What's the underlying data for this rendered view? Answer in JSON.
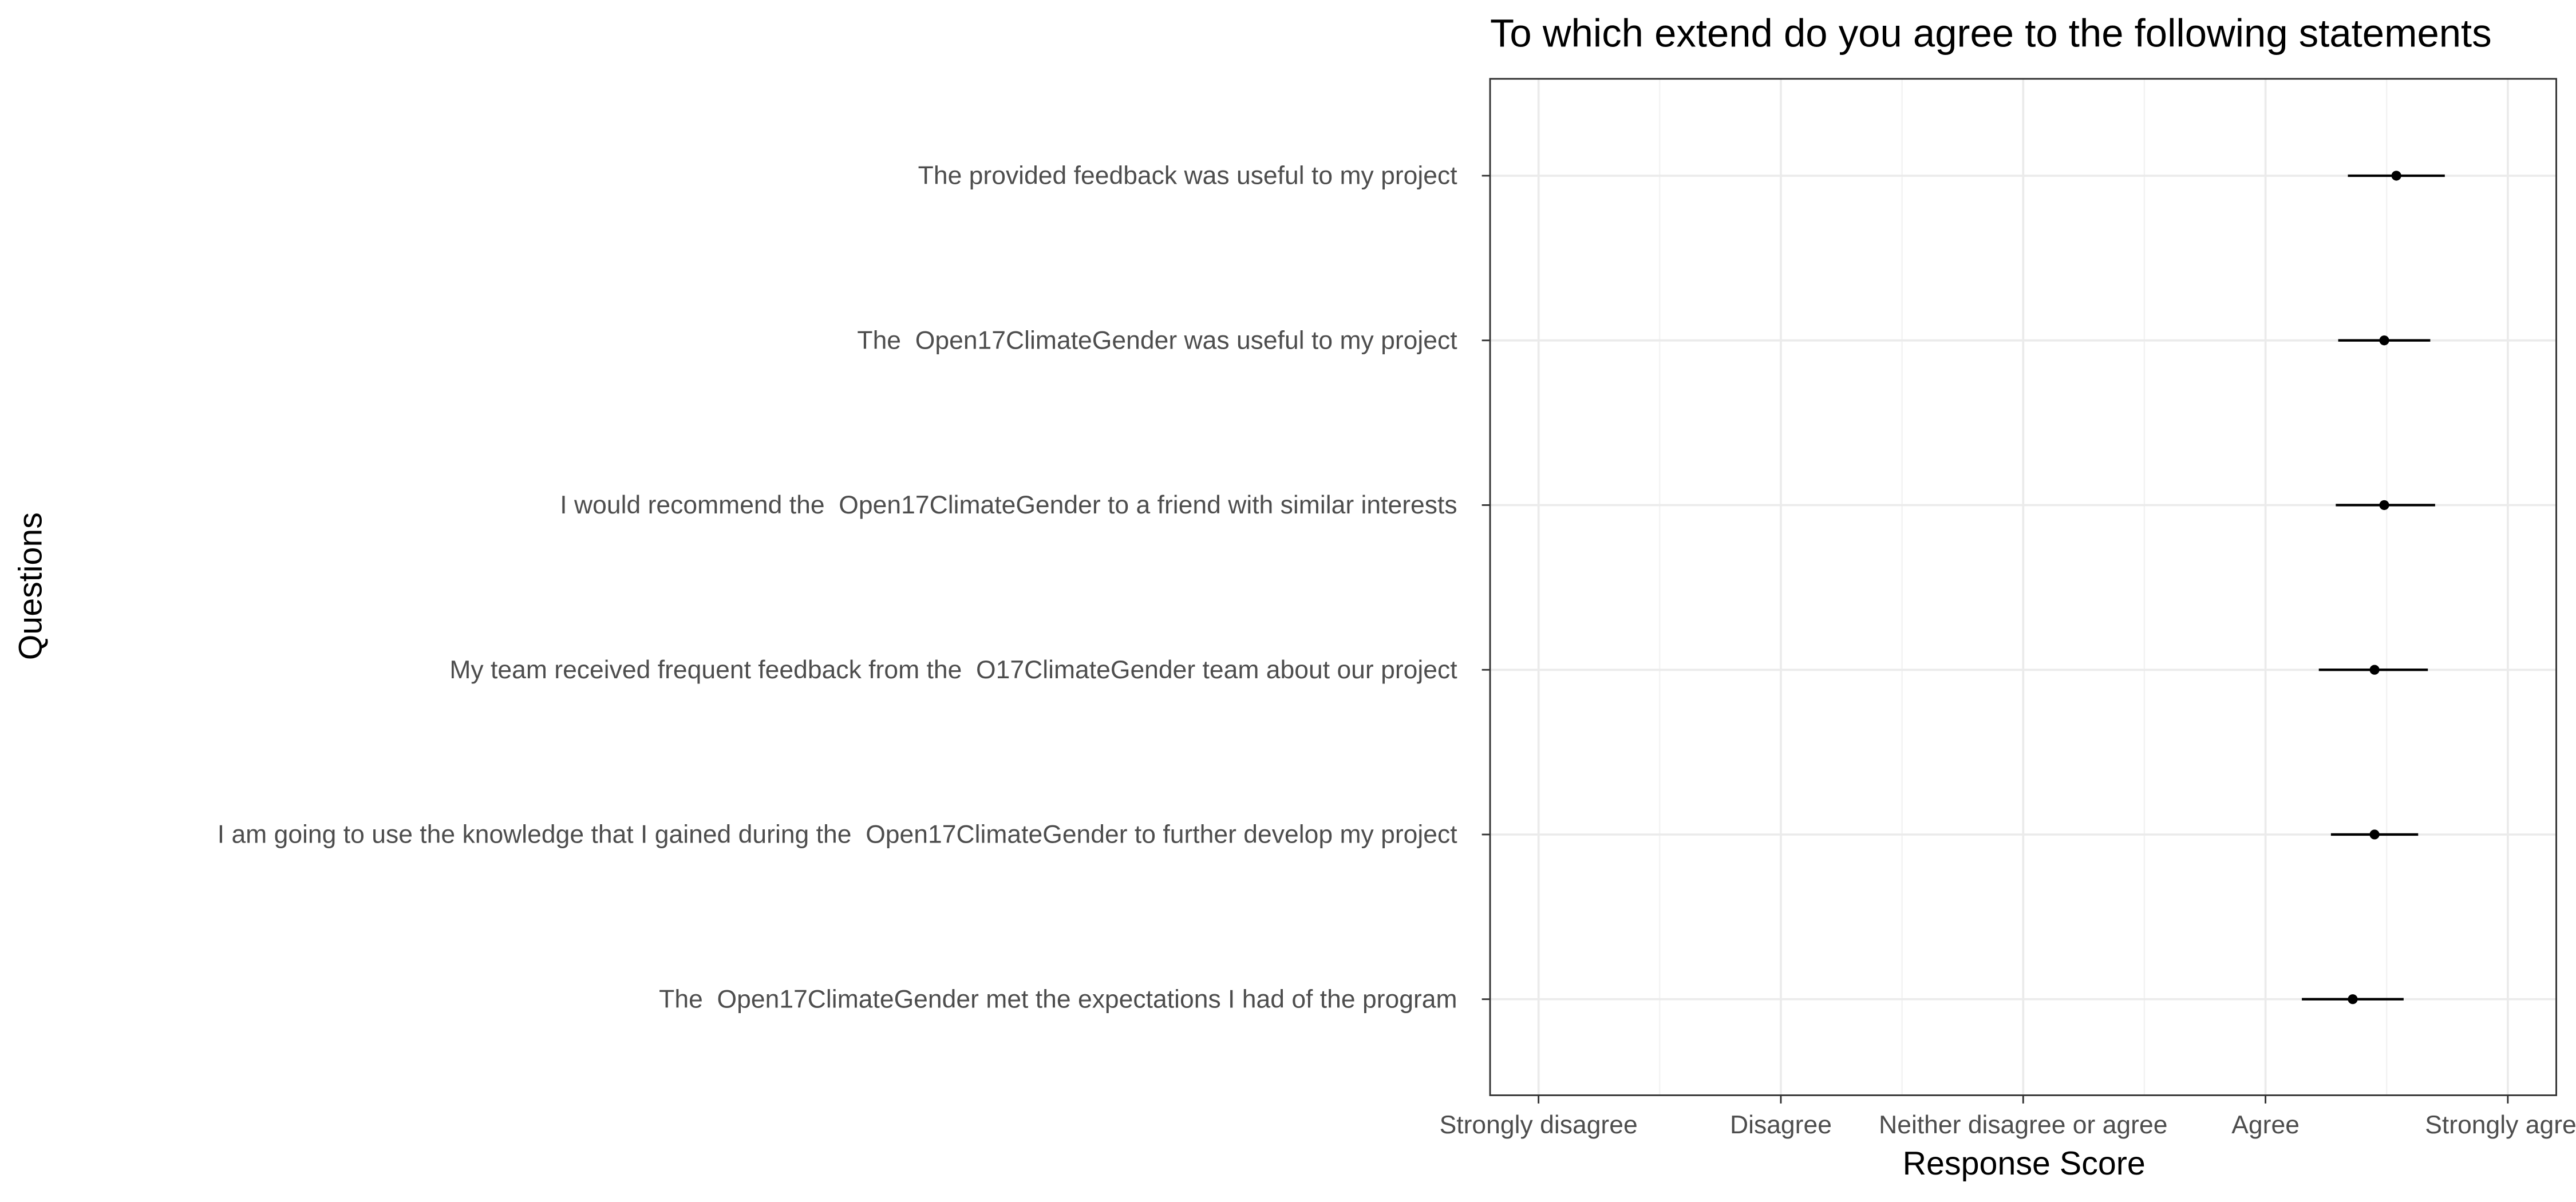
{
  "chart_data": {
    "type": "pointrange",
    "title": "To which extend do you agree to the following statements",
    "x_label": "Response Score",
    "y_label": "Questions",
    "categories": [
      "The provided feedback was useful to my project",
      "The  Open17ClimateGender was useful to my project",
      "I would recommend the  Open17ClimateGender to a friend with similar interests",
      "My team received frequent feedback from the  O17ClimateGender team about our project",
      "I am going to use the knowledge that I gained during the  Open17ClimateGender to further develop my project",
      "The  Open17ClimateGender met the expectations I had of the program"
    ],
    "values": [
      4.54,
      4.49,
      4.49,
      4.45,
      4.45,
      4.36
    ],
    "lower": [
      4.34,
      4.3,
      4.29,
      4.22,
      4.27,
      4.15
    ],
    "upper": [
      4.74,
      4.68,
      4.7,
      4.67,
      4.63,
      4.57
    ],
    "color": "#000000",
    "xlim": [
      0.8,
      5.2
    ],
    "xticks": [
      {
        "value": 1,
        "label": "Strongly disagree"
      },
      {
        "value": 2,
        "label": "Disagree"
      },
      {
        "value": 3,
        "label": "Neither disagree or agree"
      },
      {
        "value": 4,
        "label": "Agree"
      },
      {
        "value": 5,
        "label": "Strongly agree"
      }
    ],
    "grid": true
  }
}
